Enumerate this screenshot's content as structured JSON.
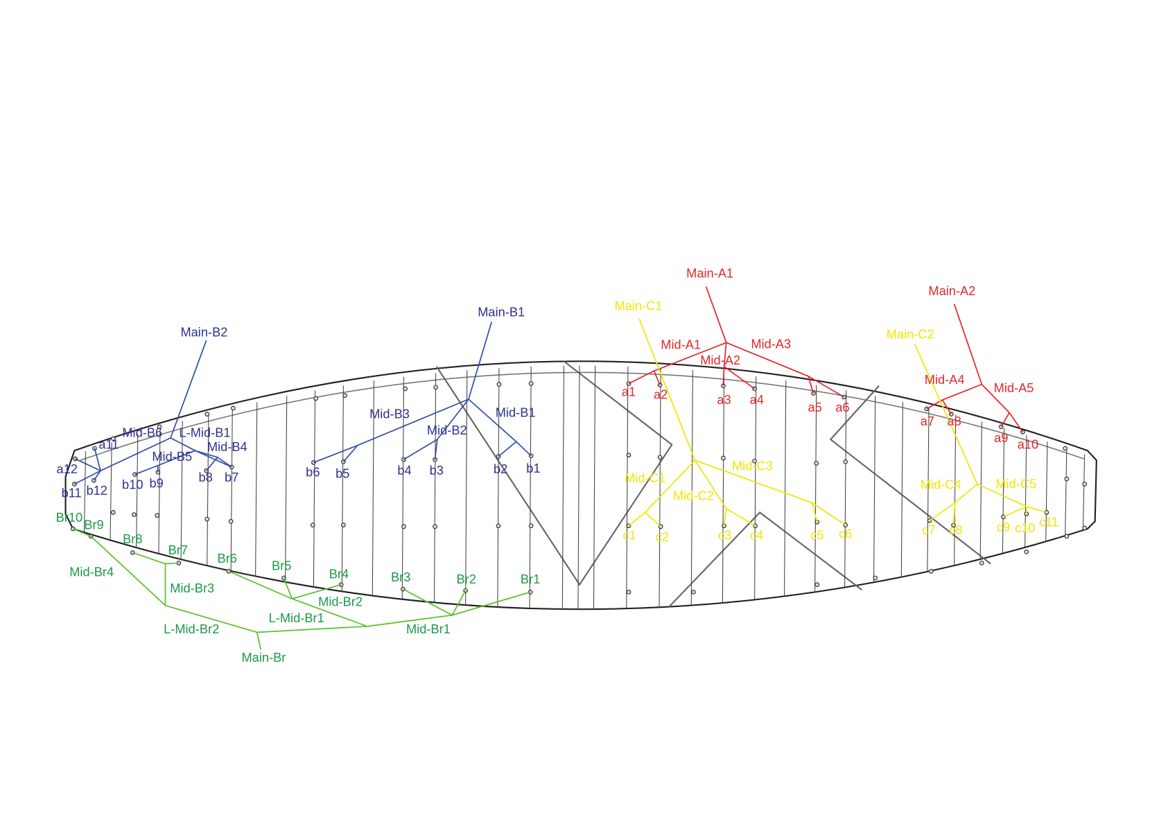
{
  "a_lines": {
    "main": [
      "Main-A1",
      "Main-A2"
    ],
    "mid": [
      "Mid-A1",
      "Mid-A2",
      "Mid-A3",
      "Mid-A4",
      "Mid-A5"
    ],
    "points": [
      "a1",
      "a2",
      "a3",
      "a4",
      "a5",
      "a6",
      "a7",
      "a8",
      "a9",
      "a10"
    ]
  },
  "b_lines": {
    "main": [
      "Main-B1",
      "Main-B2"
    ],
    "mid": [
      "Mid-B1",
      "Mid-B2",
      "Mid-B3",
      "Mid-B4",
      "Mid-B5",
      "Mid-B6",
      "L-Mid-B1"
    ],
    "points": [
      "a11",
      "a12",
      "b1",
      "b2",
      "b3",
      "b4",
      "b5",
      "b6",
      "b7",
      "b8",
      "b9",
      "b10",
      "b11",
      "b12"
    ]
  },
  "c_lines": {
    "main": [
      "Main-C1",
      "Main-C2"
    ],
    "mid": [
      "Mid-C1",
      "Mid-C2",
      "Mid-C3",
      "Mid-C4",
      "Mid-C5"
    ],
    "points": [
      "c1",
      "c2",
      "c3",
      "c4",
      "c5",
      "c6",
      "c7",
      "c8",
      "c9",
      "c10",
      "c11"
    ]
  },
  "brake_lines": {
    "main": [
      "Main-Br"
    ],
    "mid": [
      "Mid-Br1",
      "Mid-Br2",
      "Mid-Br3",
      "Mid-Br4",
      "L-Mid-Br1",
      "L-Mid-Br2"
    ],
    "points": [
      "Br1",
      "Br2",
      "Br3",
      "Br4",
      "Br5",
      "Br6",
      "Br7",
      "Br8",
      "Br9",
      "Br10"
    ]
  }
}
